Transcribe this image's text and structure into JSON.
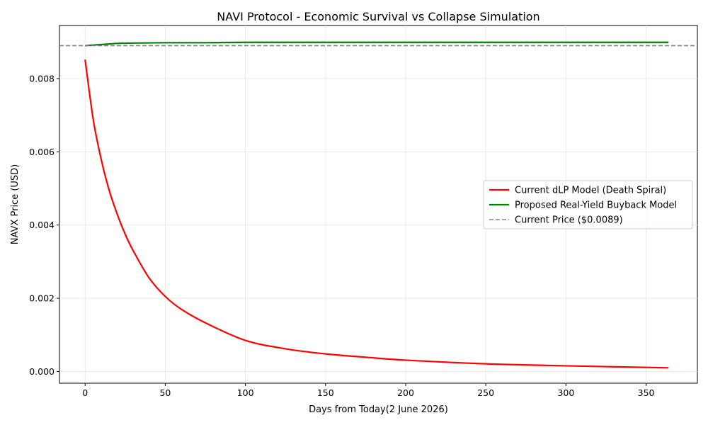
{
  "chart_data": {
    "type": "line",
    "title": "NAVI Protocol - Economic Survival vs Collapse Simulation",
    "xlabel": "Days from Today(2 June 2026)",
    "ylabel": "NAVX Price (USD)",
    "xlim": [
      -16,
      382
    ],
    "ylim": [
      -0.00032,
      0.00945
    ],
    "x_ticks": [
      0,
      50,
      100,
      150,
      200,
      250,
      300,
      350
    ],
    "x_tick_labels": [
      "0",
      "50",
      "100",
      "150",
      "200",
      "250",
      "300",
      "350"
    ],
    "y_ticks": [
      0,
      0.002,
      0.004,
      0.006,
      0.008
    ],
    "y_tick_labels": [
      "0.000",
      "0.002",
      "0.004",
      "0.006",
      "0.008"
    ],
    "grid": true,
    "legend_position": "center-right",
    "series": [
      {
        "name": "Current dLP Model (Death Spiral)",
        "color": "#ff0000",
        "style": "solid",
        "x": [
          0,
          5,
          10,
          15,
          20,
          25,
          30,
          40,
          50,
          60,
          75,
          100,
          125,
          150,
          175,
          200,
          250,
          300,
          364
        ],
        "values": [
          0.00852,
          0.0069,
          0.0058,
          0.00495,
          0.0043,
          0.00375,
          0.0033,
          0.00255,
          0.00205,
          0.0017,
          0.00133,
          0.00085,
          0.00062,
          0.00048,
          0.00039,
          0.00031,
          0.00021,
          0.000155,
          0.0001
        ]
      },
      {
        "name": "Proposed Real-Yield Buyback Model",
        "color": "#008000",
        "style": "solid",
        "x": [
          0,
          10,
          20,
          30,
          50,
          75,
          100,
          150,
          200,
          250,
          300,
          364
        ],
        "values": [
          0.0089,
          0.00893,
          0.00896,
          0.00897,
          0.00898,
          0.00898,
          0.00899,
          0.00899,
          0.00899,
          0.00899,
          0.00899,
          0.00899
        ]
      },
      {
        "name": "Current Price ($0.0089)",
        "color": "#808080",
        "style": "dashed",
        "hline": 0.0089
      }
    ]
  }
}
